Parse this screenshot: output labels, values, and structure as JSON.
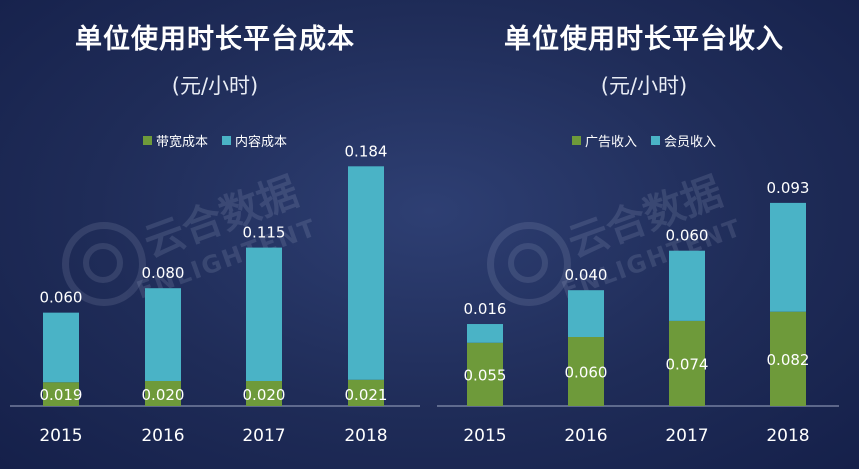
{
  "colors": {
    "green": "#6e9a3a",
    "teal": "#4ab3c6",
    "axis": "#9fa9c4"
  },
  "watermark": {
    "cn": "云合数据",
    "en": "ENLIGHTENT"
  },
  "chart_data": [
    {
      "type": "bar",
      "stacked": true,
      "title": "单位使用时长平台成本",
      "subtitle": "(元/小时)",
      "categories": [
        "2015",
        "2016",
        "2017",
        "2018"
      ],
      "legend": "top",
      "series": [
        {
          "name": "带宽成本",
          "color": "#6e9a3a",
          "values": [
            0.019,
            0.02,
            0.02,
            0.021
          ]
        },
        {
          "name": "内容成本",
          "color": "#4ab3c6",
          "values": [
            0.06,
            0.08,
            0.115,
            0.184
          ]
        }
      ]
    },
    {
      "type": "bar",
      "stacked": true,
      "title": "单位使用时长平台收入",
      "subtitle": "(元/小时)",
      "categories": [
        "2015",
        "2016",
        "2017",
        "2018"
      ],
      "legend": "top",
      "series": [
        {
          "name": "广告收入",
          "color": "#6e9a3a",
          "values": [
            0.055,
            0.06,
            0.074,
            0.082
          ]
        },
        {
          "name": "会员收入",
          "color": "#4ab3c6",
          "values": [
            0.016,
            0.04,
            0.06,
            0.093
          ]
        }
      ]
    }
  ]
}
